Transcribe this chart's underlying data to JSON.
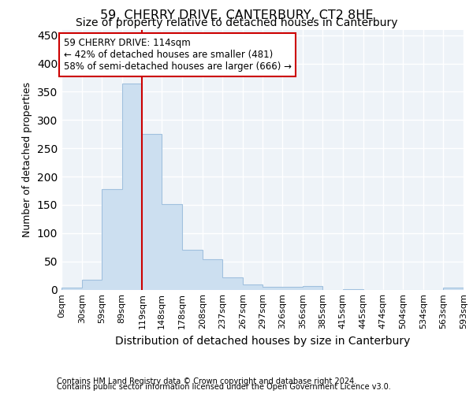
{
  "title": "59, CHERRY DRIVE, CANTERBURY, CT2 8HE",
  "subtitle": "Size of property relative to detached houses in Canterbury",
  "xlabel": "Distribution of detached houses by size in Canterbury",
  "ylabel": "Number of detached properties",
  "bar_color": "#ccdff0",
  "bar_edge_color": "#a0c0de",
  "background_color": "#eef3f8",
  "grid_color": "#ffffff",
  "property_line_x": 119,
  "property_line_color": "#cc0000",
  "annotation_box_color": "#cc0000",
  "bin_edges": [
    0,
    30,
    59,
    89,
    119,
    148,
    178,
    208,
    237,
    267,
    297,
    326,
    356,
    385,
    415,
    445,
    474,
    504,
    534,
    563,
    593
  ],
  "bin_labels": [
    "0sqm",
    "30sqm",
    "59sqm",
    "89sqm",
    "119sqm",
    "148sqm",
    "178sqm",
    "208sqm",
    "237sqm",
    "267sqm",
    "297sqm",
    "326sqm",
    "356sqm",
    "385sqm",
    "415sqm",
    "445sqm",
    "474sqm",
    "504sqm",
    "534sqm",
    "563sqm",
    "593sqm"
  ],
  "counts": [
    3,
    17,
    178,
    365,
    275,
    151,
    70,
    54,
    22,
    9,
    5,
    5,
    6,
    0,
    1,
    0,
    0,
    0,
    0,
    3
  ],
  "annotation_line1": "59 CHERRY DRIVE: 114sqm",
  "annotation_line2": "← 42% of detached houses are smaller (481)",
  "annotation_line3": "58% of semi-detached houses are larger (666) →",
  "footnote1": "Contains HM Land Registry data © Crown copyright and database right 2024.",
  "footnote2": "Contains public sector information licensed under the Open Government Licence v3.0.",
  "ylim": [
    0,
    460
  ],
  "title_fontsize": 11.5,
  "subtitle_fontsize": 10,
  "xlabel_fontsize": 10,
  "ylabel_fontsize": 9,
  "tick_fontsize": 8,
  "annotation_fontsize": 8.5,
  "footnote_fontsize": 7
}
